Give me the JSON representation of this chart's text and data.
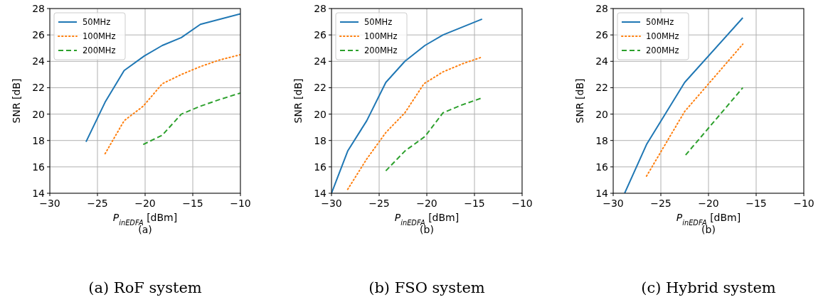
{
  "chart_data": [
    {
      "type": "line",
      "xlabel": "P$_{inEDFA}$ [dBm]",
      "ylabel": "SNR [dB]",
      "annotations": [
        "(a)",
        "(a) RoF system"
      ],
      "xlim": [
        -30,
        -10
      ],
      "xticks": [
        {
          "value": -30,
          "label": "−30"
        },
        {
          "value": -25,
          "label": "−25"
        },
        {
          "value": -20,
          "label": "−20"
        },
        {
          "value": -15,
          "label": "−15"
        },
        {
          "value": -10,
          "label": "−10"
        }
      ],
      "ylim": [
        14,
        28
      ],
      "yticks": [
        14,
        16,
        18,
        20,
        22,
        24,
        26,
        28
      ],
      "grid": true,
      "legend": "top left",
      "series": [
        {
          "name": "50MHz",
          "color": "#1f77b4",
          "line_style": "solid",
          "x": [
            -26.2,
            -24.2,
            -22.2,
            -20.1,
            -18.2,
            -16.2,
            -14.2,
            -10
          ],
          "values": [
            17.9,
            20.9,
            23.3,
            24.4,
            25.2,
            25.8,
            26.8,
            27.6
          ]
        },
        {
          "name": "100MHz",
          "color": "#ff7f0e",
          "line_style": "dotted",
          "x": [
            -24.2,
            -22.2,
            -20.2,
            -18.2,
            -16.2,
            -14.2,
            -12.2,
            -10
          ],
          "values": [
            17.0,
            19.5,
            20.6,
            22.3,
            23.0,
            23.6,
            24.1,
            24.5
          ]
        },
        {
          "name": "200MHz",
          "color": "#2ca02c",
          "line_style": "dashed",
          "x": [
            -20.2,
            -18.2,
            -16.2,
            -14.2,
            -12.2,
            -10
          ],
          "values": [
            17.7,
            18.4,
            20.0,
            20.6,
            21.1,
            21.6
          ]
        }
      ]
    },
    {
      "type": "line",
      "xlabel": "P$_{inEDFA}$ [dBm]",
      "ylabel": "SNR [dB]",
      "annotations": [
        "(b)",
        "(b) FSO system"
      ],
      "xlim": [
        -30,
        -10
      ],
      "xticks": [
        {
          "value": -30,
          "label": "−30"
        },
        {
          "value": -25,
          "label": "−25"
        },
        {
          "value": -20,
          "label": "−20"
        },
        {
          "value": -15,
          "label": "−15"
        },
        {
          "value": -10,
          "label": "−10"
        }
      ],
      "ylim": [
        14,
        28
      ],
      "yticks": [
        14,
        16,
        18,
        20,
        22,
        24,
        26,
        28
      ],
      "grid": true,
      "legend": "top left",
      "series": [
        {
          "name": "50MHz",
          "color": "#1f77b4",
          "line_style": "solid",
          "x": [
            -30,
            -28.3,
            -26.3,
            -24.3,
            -22.3,
            -20.2,
            -18.3,
            -14.2
          ],
          "values": [
            14.0,
            17.2,
            19.5,
            22.4,
            24.0,
            25.2,
            26.0,
            27.2
          ]
        },
        {
          "name": "100MHz",
          "color": "#ff7f0e",
          "line_style": "dotted",
          "x": [
            -28.3,
            -26.3,
            -24.3,
            -22.3,
            -20.3,
            -18.3,
            -16.3,
            -14.3
          ],
          "values": [
            14.3,
            16.6,
            18.6,
            20.1,
            22.3,
            23.2,
            23.8,
            24.3
          ]
        },
        {
          "name": "200MHz",
          "color": "#2ca02c",
          "line_style": "dashed",
          "x": [
            -24.3,
            -22.3,
            -20.2,
            -18.3,
            -16.3,
            -14.3
          ],
          "values": [
            15.7,
            17.2,
            18.3,
            20.1,
            20.7,
            21.2
          ]
        }
      ]
    },
    {
      "type": "line",
      "xlabel": "P$_{inEDFA}$ [dBm]",
      "ylabel": "SNR [dB]",
      "annotations": [
        "(b)",
        "(c) Hybrid system"
      ],
      "xlim": [
        -30,
        -10
      ],
      "xticks": [
        {
          "value": -30,
          "label": "−30"
        },
        {
          "value": -25,
          "label": "−25"
        },
        {
          "value": -20,
          "label": "−20"
        },
        {
          "value": -15,
          "label": "−15"
        },
        {
          "value": -10,
          "label": "−10"
        }
      ],
      "ylim": [
        14,
        28
      ],
      "yticks": [
        14,
        16,
        18,
        20,
        22,
        24,
        26,
        28
      ],
      "grid": true,
      "legend": "top left",
      "series": [
        {
          "name": "50MHz",
          "color": "#1f77b4",
          "line_style": "solid",
          "x": [
            -28.8,
            -26.5,
            -22.5,
            -16.4
          ],
          "values": [
            14.0,
            17.7,
            22.4,
            27.3
          ]
        },
        {
          "name": "100MHz",
          "color": "#ff7f0e",
          "line_style": "dotted",
          "x": [
            -26.5,
            -22.5,
            -16.4
          ],
          "values": [
            15.3,
            20.2,
            25.3
          ]
        },
        {
          "name": "200MHz",
          "color": "#2ca02c",
          "line_style": "dashed",
          "x": [
            -22.4,
            -16.4
          ],
          "values": [
            16.9,
            22.0
          ]
        }
      ]
    }
  ]
}
